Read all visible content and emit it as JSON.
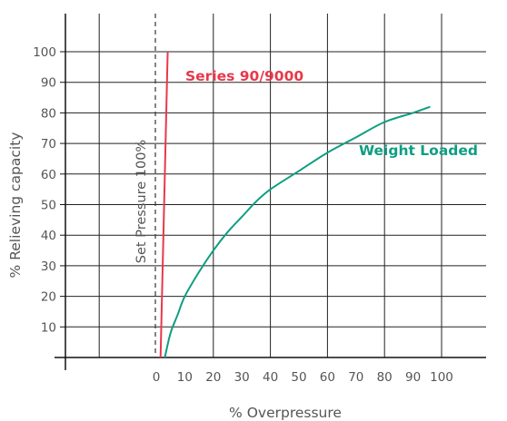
{
  "chart_data": {
    "type": "line",
    "xlabel": "% Overpressure",
    "ylabel": "% Relieving capacity",
    "xlim": [
      -30,
      115
    ],
    "ylim": [
      -3,
      108
    ],
    "grid": true,
    "x_ticks": [
      0,
      10,
      20,
      30,
      40,
      50,
      60,
      70,
      80,
      90,
      100
    ],
    "y_ticks": [
      10,
      20,
      30,
      40,
      50,
      60,
      70,
      80,
      90,
      100
    ],
    "x_tick_labels": [
      "0",
      "10",
      "20",
      "30",
      "40",
      "50",
      "60",
      "70",
      "80",
      "90",
      "100"
    ],
    "y_tick_labels": [
      "10",
      "20",
      "30",
      "40",
      "50",
      "60",
      "70",
      "80",
      "90",
      "100"
    ],
    "annotations": [
      {
        "text": "Set Pressure 100%",
        "x": 0,
        "orientation": "vertical",
        "style": "dashed-line"
      }
    ],
    "series": [
      {
        "name": "Series 90/9000",
        "color": "#e8394a",
        "points": [
          [
            1.5,
            0
          ],
          [
            2.0,
            20
          ],
          [
            2.5,
            40
          ],
          [
            3.0,
            60
          ],
          [
            3.5,
            80
          ],
          [
            4.0,
            100
          ]
        ]
      },
      {
        "name": "Weight Loaded",
        "color": "#0e9e82",
        "points": [
          [
            3,
            0
          ],
          [
            5,
            8
          ],
          [
            7.5,
            14
          ],
          [
            10,
            20
          ],
          [
            15,
            28
          ],
          [
            20,
            35
          ],
          [
            25,
            41
          ],
          [
            30,
            46
          ],
          [
            35,
            51
          ],
          [
            40,
            55
          ],
          [
            50,
            61
          ],
          [
            60,
            67
          ],
          [
            70,
            72
          ],
          [
            80,
            77
          ],
          [
            90,
            80
          ],
          [
            96,
            82
          ]
        ]
      }
    ]
  }
}
